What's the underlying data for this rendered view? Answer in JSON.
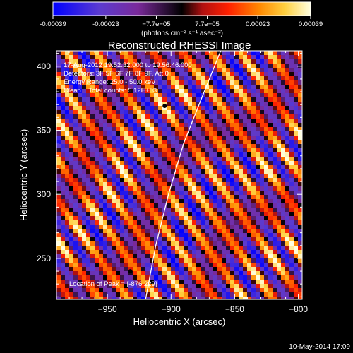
{
  "colorbar": {
    "tick_labels": [
      "-0.00039",
      "-0.00023",
      "−7.7e−05",
      "7.7e−05",
      "0.00023",
      "0.00039"
    ],
    "tick_values": [
      -0.00039,
      -0.00023,
      -7.7e-05,
      7.7e-05,
      0.00023,
      0.00039
    ],
    "range": [
      -0.00039,
      0.00039
    ],
    "units": "(photons cm⁻² s⁻¹ asec⁻²)",
    "colors": [
      "#0000ff",
      "#5b3bd0",
      "#7a2a9a",
      "#000000",
      "#b01010",
      "#ff2000",
      "#ff8800",
      "#ffd040",
      "#ffffe0"
    ]
  },
  "chart_data": {
    "type": "heatmap",
    "title": "Reconstructed RHESSI Image",
    "xlabel": "Heliocentric X (arcsec)",
    "ylabel": "Heliocentric Y (arcsec)",
    "xlim": [
      -990,
      -797
    ],
    "ylim": [
      218,
      412
    ],
    "x_ticks": [
      -950,
      -900,
      -850,
      -800
    ],
    "y_ticks": [
      250,
      300,
      350,
      400
    ],
    "x_tick_labels": [
      "−950",
      "−900",
      "−850",
      "−800"
    ],
    "y_tick_labels": [
      "250",
      "300",
      "350",
      "400"
    ],
    "peak_location": [
      -876,
      229
    ],
    "markers": [
      [
        -932,
        240
      ],
      [
        -905,
        369
      ]
    ],
    "limb_curve": [
      [
        -920,
        218
      ],
      [
        -912,
        260
      ],
      [
        -902,
        300
      ],
      [
        -890,
        340
      ],
      [
        -876,
        375
      ],
      [
        -861,
        412
      ]
    ],
    "annotations": [
      "17-Aug-2012 19:52:32.000 to 19:56:46.000",
      "Detectors: 3F 5F 6F 7F 8F 9F, Att 0",
      "Energy Range: 25.0 - 50.0 keV",
      "Clean    Total counts: 5.12E+03",
      "Location of Peak = [-876,229]"
    ]
  },
  "footer": {
    "timestamp": "10-May-2014 17:09"
  }
}
